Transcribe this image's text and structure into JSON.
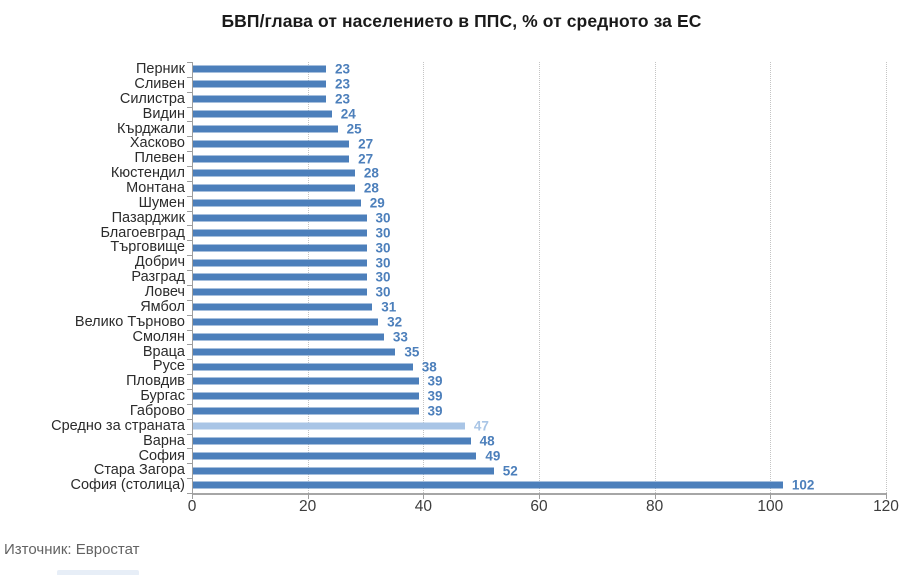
{
  "source": "Източник: Евростат",
  "chart_data": {
    "type": "bar",
    "orientation": "horizontal",
    "title": "БВП/глава от населението в ППС, % от средното за ЕС",
    "xlabel": "",
    "ylabel": "",
    "xlim": [
      0,
      120
    ],
    "xticks": [
      0,
      20,
      40,
      60,
      80,
      100,
      120
    ],
    "grid": "vertical-dotted",
    "legend": "none",
    "categories": [
      "Перник",
      "Сливен",
      "Силистра",
      "Видин",
      "Кърджали",
      "Хасково",
      "Плевен",
      "Кюстендил",
      "Монтана",
      "Шумен",
      "Пазарджик",
      "Благоевград",
      "Търговище",
      "Добрич",
      "Разград",
      "Ловеч",
      "Ямбол",
      "Велико Търново",
      "Смолян",
      "Враца",
      "Русе",
      "Пловдив",
      "Бургас",
      "Габрово",
      "Средно за страната",
      "Варна",
      "София",
      "Стара Загора",
      "София (столица)"
    ],
    "values": [
      23,
      23,
      23,
      24,
      25,
      27,
      27,
      28,
      28,
      29,
      30,
      30,
      30,
      30,
      30,
      30,
      31,
      32,
      33,
      35,
      38,
      39,
      39,
      39,
      47,
      48,
      49,
      52,
      102
    ],
    "highlight_category": "Средно за страната",
    "highlight_index": 24,
    "colors": {
      "bar": "#4c7fbb",
      "highlight_bar": "#a9c5e6",
      "value_label": "#4c7fbb",
      "highlight_value_label": "#a9c5e6",
      "gridline": "#c4c4c4",
      "axis": "#9e9e9e"
    }
  }
}
